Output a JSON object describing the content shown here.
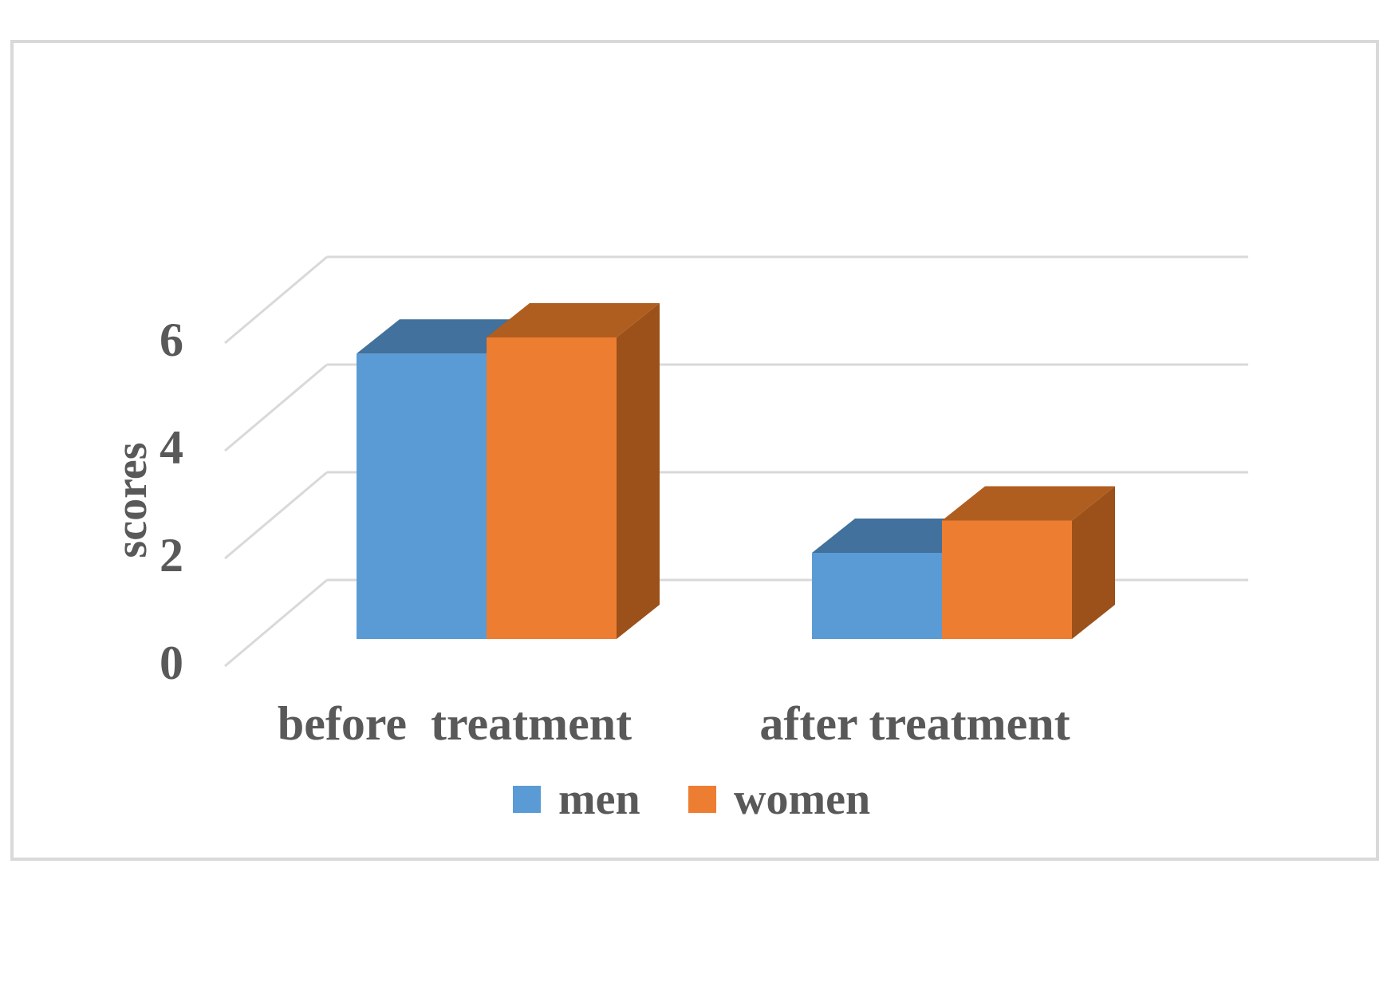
{
  "page": {
    "background_color": "#ffffff",
    "panel_border_color": "#d9d9d9"
  },
  "chart_data": {
    "type": "bar",
    "projection": "3d-clustered-column",
    "title": "",
    "categories": [
      "before  treatment",
      "after treatment"
    ],
    "series": [
      {
        "name": "men",
        "values": [
          5.3,
          1.6
        ],
        "color": "#5B9BD5",
        "top_color": "#41719C",
        "side_color": "#41719C"
      },
      {
        "name": "women",
        "values": [
          5.6,
          2.2
        ],
        "color": "#ED7D31",
        "top_color": "#B05E20",
        "side_color": "#9B5119"
      }
    ],
    "xlabel": "",
    "ylabel": "scores",
    "yticks": [
      0,
      2,
      4,
      6
    ],
    "ylim": [
      0,
      6
    ],
    "grid": true,
    "gridline_color": "#d9d9d9",
    "text_color": "#595959",
    "legend": {
      "position": "bottom",
      "labels": [
        "men",
        "women"
      ]
    }
  }
}
